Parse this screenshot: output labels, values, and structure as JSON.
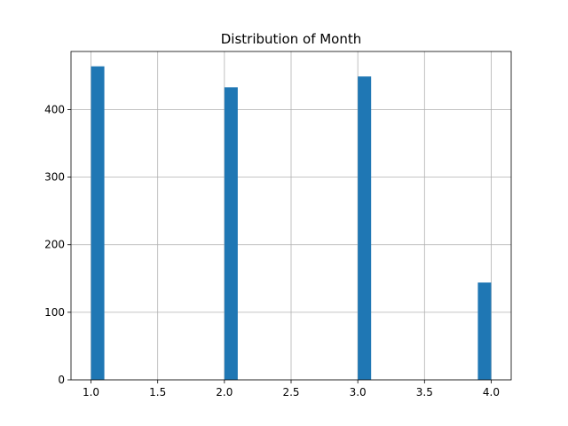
{
  "chart_data": {
    "type": "bar",
    "title": "Distribution of Month",
    "xlabel": "",
    "ylabel": "",
    "x_ticks": [
      "1.0",
      "1.5",
      "2.0",
      "2.5",
      "3.0",
      "3.5",
      "4.0"
    ],
    "y_ticks": [
      "0",
      "100",
      "200",
      "300",
      "400"
    ],
    "xlim": [
      0.85,
      4.15
    ],
    "ylim": [
      0,
      486
    ],
    "grid": true,
    "bin_width": 0.1,
    "bars": [
      {
        "x_start": 1.0,
        "x_end": 1.1,
        "value": 464
      },
      {
        "x_start": 2.0,
        "x_end": 2.1,
        "value": 433
      },
      {
        "x_start": 3.0,
        "x_end": 3.1,
        "value": 449
      },
      {
        "x_start": 3.9,
        "x_end": 4.0,
        "value": 144
      }
    ],
    "bar_color": "#1f77b4"
  }
}
